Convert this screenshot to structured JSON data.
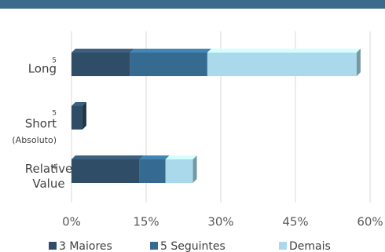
{
  "chart_data": {
    "type": "stacked-hbar",
    "categories": [
      "Long",
      "Short",
      "Relative Value"
    ],
    "category_notes": [
      5,
      5,
      4
    ],
    "category_subtitles": [
      null,
      "(Absoluto)",
      null
    ],
    "series": [
      {
        "name": "3 Maiores",
        "color": "#2f4d66",
        "values": [
          11.8,
          2.2,
          13.7
        ]
      },
      {
        "name": "5 Seguintes",
        "color": "#356b90",
        "values": [
          15.5,
          0,
          5.2
        ]
      },
      {
        "name": "Demais",
        "color": "#a9d9ea",
        "values": [
          30,
          0,
          5.5
        ]
      }
    ],
    "xlim": [
      0,
      60
    ],
    "xticks": [
      {
        "value": 0,
        "label": "0%"
      },
      {
        "value": 15,
        "label": "15%"
      },
      {
        "value": 30,
        "label": "30%"
      },
      {
        "value": 45,
        "label": "45%"
      },
      {
        "value": 60,
        "label": "60%"
      }
    ],
    "grid": true
  }
}
